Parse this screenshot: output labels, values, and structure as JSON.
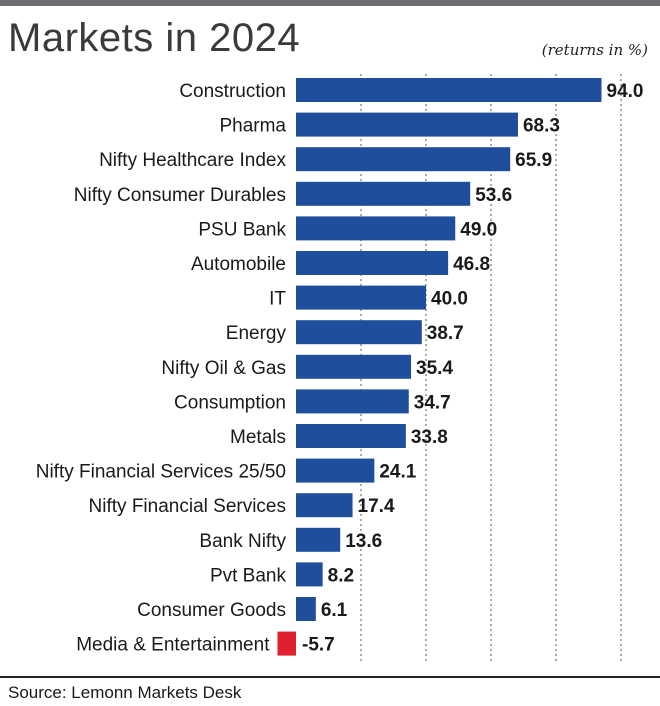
{
  "header": {
    "title": "Markets in 2024",
    "unit_note": "(returns in %)"
  },
  "footer": {
    "source": "Source: Lemonn Markets Desk"
  },
  "colors": {
    "positive_bar": "#1f4e9c",
    "negative_bar": "#e0202e",
    "gridline": "#555555"
  },
  "chart_data": {
    "type": "bar",
    "orientation": "horizontal",
    "categories": [
      "Construction",
      "Pharma",
      "Nifty Healthcare Index",
      "Nifty Consumer Durables",
      "PSU Bank",
      "Automobile",
      "IT",
      "Energy",
      "Nifty Oil & Gas",
      "Consumption",
      "Metals",
      "Nifty Financial Services 25/50",
      "Nifty Financial Services",
      "Bank Nifty",
      "Pvt Bank",
      "Consumer Goods",
      "Media & Entertainment"
    ],
    "values": [
      94.0,
      68.3,
      65.9,
      53.6,
      49.0,
      46.8,
      40.0,
      38.7,
      35.4,
      34.7,
      33.8,
      24.1,
      17.4,
      13.6,
      8.2,
      6.1,
      -5.7
    ],
    "value_labels": [
      "94.0",
      "68.3",
      "65.9",
      "53.6",
      "49.0",
      "46.8",
      "40.0",
      "38.7",
      "35.4",
      "34.7",
      "33.8",
      "24.1",
      "17.4",
      "13.6",
      "8.2",
      "6.1",
      "-5.7"
    ],
    "xlim": [
      -6,
      100
    ],
    "gridlines_at": [
      20,
      40,
      60,
      80,
      100
    ],
    "grid": true,
    "gridline_style": "dotted-vertical",
    "title": "Markets in 2024",
    "xlabel": "",
    "ylabel": ""
  }
}
